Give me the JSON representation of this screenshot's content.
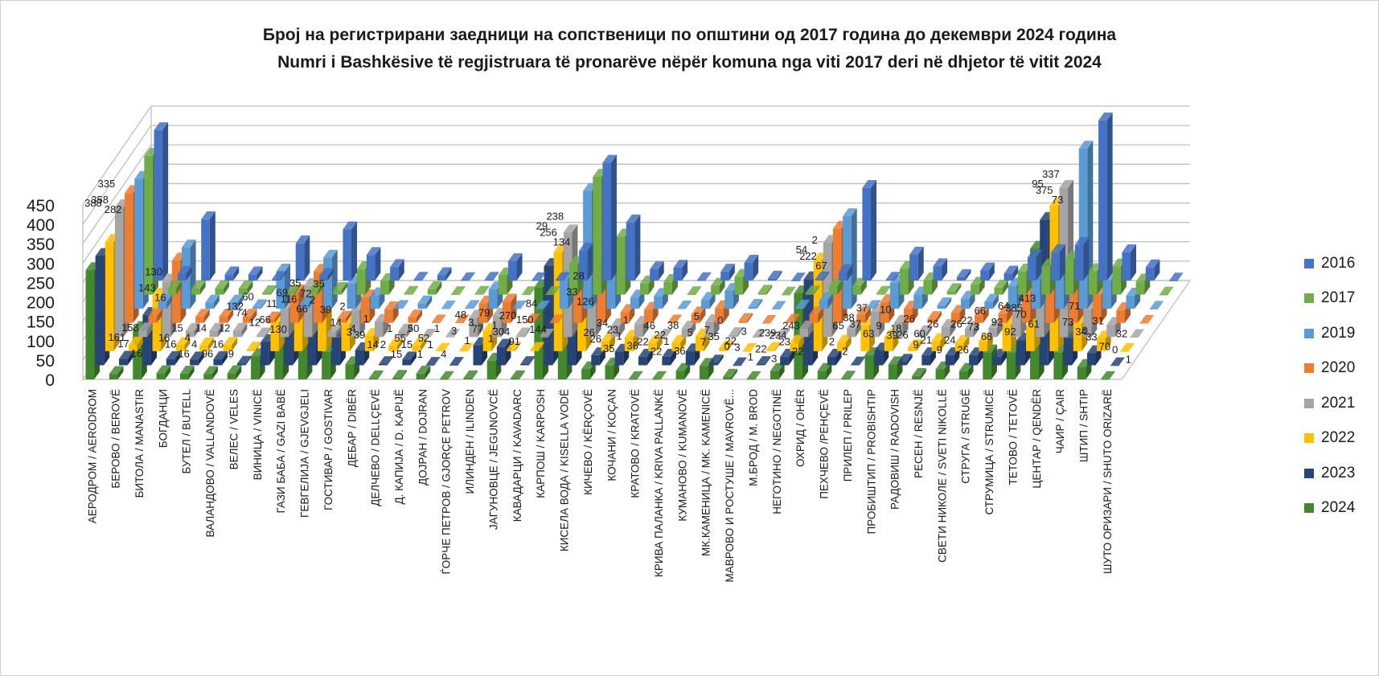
{
  "title_line1": "Број на регистрирани заедници на сопственици по општини од  2017 година до декември 2024 година",
  "title_line2": "Numri i Bashkësive të regjistruara të pronarëve nëpër komuna nga viti 2017 deri në dhjetor të vitit 2024",
  "chart_data": {
    "type": "bar",
    "style": "3d-clustered",
    "ylim": [
      0,
      450
    ],
    "yticks": [
      0,
      50,
      100,
      150,
      200,
      250,
      300,
      350,
      400,
      450
    ],
    "grid": true,
    "legend_position": "right",
    "categories": [
      "АЕРОДРОМ / AERODROM",
      "БЕРОВО / BEROVË",
      "БИТОЛА / MANASTIR",
      "БОГДАНЦИ",
      "БУТЕЛ / BUTELL",
      "ВАЛАНДОВО / VALLANDOVË",
      "ВЕЛЕС / VELES",
      "ВИНИЦА / VINICË",
      "ГАЗИ БАБА / GAZI BABË",
      "ГЕВГЕЛИЈА / GJEVGJELI",
      "ГОСТИВАР / GOSTIVAR",
      "ДЕБАР / DIBËR",
      "ДЕЛЧЕВО / DELLÇEVË",
      "Д. КАПИЈА / D. KAPIJË",
      "ДОЈРАН / DOJRAN",
      "ЃОРЧЕ ПЕТРОВ / GJORÇE PETROV",
      "ИЛИНДЕН / ILINDEN",
      "ЈАГУНОВЦЕ / JEGUNOVCË",
      "КАВАДАРЦИ / KAVADARC",
      "КАРПОШ / KARPOSH",
      "КИСЕЛА ВОДА / KISELLA VODË",
      "КИЧЕВО / KËRÇOVË",
      "КОЧАНИ / KOÇAN",
      "КРАТОВО / KRATOVË",
      "КРИВА ПАЛАНКА / KRIVA PALLANKË",
      "КУМАНОВО / KUMANOVË",
      "МК.КАМЕНИЦА / MK. KAMENICË",
      "МАВРОВО И РОСТУШЕ / MAVROVË...",
      "М.БРОД / M. BROD",
      "НЕГОТИНО / NEGOTINË",
      "ОХРИД / OHËR",
      "ПЕХЧЕВО /PEHÇEVË",
      "ПРИЛЕП / PRILEP",
      "ПРОБИШТИП / PROBISHTIP",
      "РАДОВИШ / RADOVISH",
      "РЕСЕН / RESNJË",
      "СВЕТИ НИКОЛЕ / SVETI NIKOLLË",
      "СТРУГА / STRUGË",
      "СТРУМИЦА / STRUMICË",
      "ТЕТОВО / TETOVË",
      "ЦЕНТАР / QENDËR",
      "ЧАИР / ÇAIR",
      "ШТИП / SHTIP",
      "ШУТО ОРИЗАРИ / SHUTO ORIZARË"
    ],
    "series": [
      {
        "name": "2016",
        "color": "#4472C4",
        "values": [
          388,
          17,
          158,
          16,
          16,
          4,
          96,
          12,
          132,
          66,
          35,
          2,
          14,
          1,
          2,
          50,
          1,
          1,
          77,
          304,
          150,
          29,
          33,
          1,
          23,
          46,
          5,
          0,
          3,
          22,
          239,
          2,
          67,
          37,
          9,
          26,
          18,
          60,
          73,
          92,
          413,
          73,
          34,
          0
        ]
      },
      {
        "name": "2017",
        "color": "#70AD47",
        "values": [
          358,
          17,
          16,
          16,
          16,
          4,
          4,
          12,
          12,
          66,
          35,
          2,
          14,
          1,
          2,
          50,
          1,
          1,
          79,
          304,
          150,
          29,
          33,
          1,
          23,
          46,
          5,
          0,
          3,
          22,
          23,
          2,
          67,
          37,
          9,
          26,
          18,
          60,
          73,
          92,
          61,
          73,
          34,
          0
        ]
      },
      {
        "name": "2019",
        "color": "#5B9BD5",
        "values": [
          335,
          17,
          158,
          16,
          16,
          4,
          96,
          12,
          132,
          66,
          35,
          2,
          14,
          1,
          2,
          50,
          1,
          1,
          77,
          304,
          150,
          29,
          33,
          1,
          23,
          46,
          5,
          0,
          3,
          22,
          239,
          2,
          67,
          37,
          9,
          26,
          18,
          60,
          73,
          92,
          413,
          73,
          34,
          0
        ]
      },
      {
        "name": "2020",
        "color": "#ED7D31",
        "values": [
          335,
          17,
          161,
          16,
          16,
          16,
          9,
          79,
          132,
          11,
          66,
          35,
          14,
          1,
          1,
          50,
          55,
          4,
          1,
          91,
          144,
          28,
          34,
          1,
          22,
          38,
          5,
          0,
          3,
          22,
          243,
          22,
          54,
          37,
          10,
          26,
          21,
          24,
          73,
          92,
          95,
          73,
          33,
          0
        ]
      },
      {
        "name": "2021",
        "color": "#A5A5A5",
        "values": [
          335,
          17,
          143,
          16,
          16,
          16,
          4,
          74,
          132,
          11,
          69,
          39,
          14,
          1,
          1,
          50,
          55,
          4,
          1,
          270,
          144,
          28,
          34,
          1,
          22,
          38,
          5,
          0,
          3,
          22,
          243,
          22,
          65,
          37,
          10,
          26,
          21,
          24,
          66,
          92,
          385,
          71,
          31,
          0
        ]
      },
      {
        "name": "2022",
        "color": "#FFC000",
        "values": [
          282,
          17,
          143,
          16,
          15,
          16,
          4,
          74,
          132,
          130,
          69,
          39,
          14,
          15,
          1,
          1,
          52,
          4,
          3,
          256,
          134,
          26,
          35,
          22,
          22,
          38,
          7,
          0,
          3,
          22,
          234,
          22,
          65,
          37,
          10,
          26,
          21,
          26,
          68,
          64,
          375,
          71,
          33,
          0
        ]
      },
      {
        "name": "2023",
        "color": "#264478",
        "values": [
          282,
          17,
          130,
          16,
          15,
          16,
          4,
          60,
          132,
          130,
          72,
          39,
          3,
          15,
          1,
          1,
          52,
          48,
          3,
          256,
          134,
          26,
          35,
          22,
          22,
          36,
          7,
          0,
          3,
          22,
          222,
          22,
          2,
          38,
          9,
          26,
          26,
          26,
          22,
          64,
          375,
          71,
          31,
          0
        ]
      },
      {
        "name": "2024",
        "color": "#43882F",
        "values": [
          282,
          14,
          130,
          16,
          15,
          14,
          16,
          60,
          132,
          116,
          72,
          39,
          3,
          4,
          15,
          1,
          3,
          48,
          3,
          238,
          126,
          26,
          36,
          1,
          1,
          22,
          35,
          7,
          1,
          22,
          222,
          22,
          2,
          63,
          39,
          9,
          26,
          22,
          70,
          70,
          337,
          70,
          32,
          1
        ]
      }
    ],
    "data_labels": [
      {
        "text": "388"
      },
      {
        "text": "358"
      },
      {
        "text": "335"
      },
      {
        "text": "282"
      },
      {
        "text": "17"
      },
      {
        "text": "158"
      },
      {
        "text": "16"
      },
      {
        "text": "161"
      },
      {
        "text": "143"
      },
      {
        "text": "130"
      },
      {
        "text": "16"
      },
      {
        "text": "16"
      },
      {
        "text": "15"
      },
      {
        "text": "16"
      },
      {
        "text": "16"
      },
      {
        "text": "4"
      },
      {
        "text": "14"
      },
      {
        "text": "96"
      },
      {
        "text": "4"
      },
      {
        "text": "16"
      },
      {
        "text": "12"
      },
      {
        "text": "9"
      },
      {
        "text": "74"
      },
      {
        "text": "60"
      },
      {
        "text": "12"
      },
      {
        "text": "132"
      },
      {
        "text": "66"
      },
      {
        "text": "11"
      },
      {
        "text": "130"
      },
      {
        "text": "116"
      },
      {
        "text": "35"
      },
      {
        "text": "66"
      },
      {
        "text": "69"
      },
      {
        "text": "2"
      },
      {
        "text": "35"
      },
      {
        "text": "39"
      },
      {
        "text": "72"
      },
      {
        "text": "14"
      },
      {
        "text": "2"
      },
      {
        "text": "3"
      },
      {
        "text": "39"
      },
      {
        "text": "1"
      },
      {
        "text": "14"
      },
      {
        "text": "4"
      },
      {
        "text": "2"
      },
      {
        "text": "1"
      },
      {
        "text": "15"
      },
      {
        "text": "15"
      },
      {
        "text": "50"
      },
      {
        "text": "1"
      },
      {
        "text": "55"
      },
      {
        "text": "1"
      },
      {
        "text": "1"
      },
      {
        "text": "4"
      },
      {
        "text": "52"
      },
      {
        "text": "3"
      },
      {
        "text": "48"
      },
      {
        "text": "1"
      },
      {
        "text": "77"
      },
      {
        "text": "79"
      },
      {
        "text": "1"
      },
      {
        "text": "3"
      },
      {
        "text": "304"
      },
      {
        "text": "270"
      },
      {
        "text": "91"
      },
      {
        "text": "1"
      },
      {
        "text": "150"
      },
      {
        "text": "84"
      },
      {
        "text": "144"
      },
      {
        "text": "256"
      },
      {
        "text": "238"
      },
      {
        "text": "134"
      },
      {
        "text": "29"
      },
      {
        "text": "33"
      },
      {
        "text": "28"
      },
      {
        "text": "126"
      },
      {
        "text": "26"
      },
      {
        "text": "34"
      },
      {
        "text": "35"
      },
      {
        "text": "26"
      },
      {
        "text": "1"
      },
      {
        "text": "1"
      },
      {
        "text": "36"
      },
      {
        "text": "23"
      },
      {
        "text": "22"
      },
      {
        "text": "46"
      },
      {
        "text": "22"
      },
      {
        "text": "1"
      },
      {
        "text": "38"
      },
      {
        "text": "36"
      },
      {
        "text": "22"
      },
      {
        "text": "5"
      },
      {
        "text": "5"
      },
      {
        "text": "7"
      },
      {
        "text": "35"
      },
      {
        "text": "0"
      },
      {
        "text": "0"
      },
      {
        "text": "7"
      },
      {
        "text": "3"
      },
      {
        "text": "3"
      },
      {
        "text": "1"
      },
      {
        "text": "22"
      },
      {
        "text": "22"
      },
      {
        "text": "239"
      },
      {
        "text": "3"
      },
      {
        "text": "23"
      },
      {
        "text": "243"
      },
      {
        "text": "22"
      },
      {
        "text": "234"
      },
      {
        "text": "222"
      },
      {
        "text": "2"
      },
      {
        "text": "67"
      },
      {
        "text": "54"
      },
      {
        "text": "2"
      },
      {
        "text": "65"
      },
      {
        "text": "2"
      },
      {
        "text": "37"
      },
      {
        "text": "37"
      },
      {
        "text": "63"
      },
      {
        "text": "38"
      },
      {
        "text": "9"
      },
      {
        "text": "10"
      },
      {
        "text": "39"
      },
      {
        "text": "26"
      },
      {
        "text": "26"
      },
      {
        "text": "9"
      },
      {
        "text": "18"
      },
      {
        "text": "21"
      },
      {
        "text": "26"
      },
      {
        "text": "9"
      },
      {
        "text": "60"
      },
      {
        "text": "24"
      },
      {
        "text": "26"
      },
      {
        "text": "26"
      },
      {
        "text": "73"
      },
      {
        "text": "66"
      },
      {
        "text": "68"
      },
      {
        "text": "22"
      },
      {
        "text": "92"
      },
      {
        "text": "64"
      },
      {
        "text": "92"
      },
      {
        "text": "70"
      },
      {
        "text": "413"
      },
      {
        "text": "61"
      },
      {
        "text": "385"
      },
      {
        "text": "375"
      },
      {
        "text": "337"
      },
      {
        "text": "73"
      },
      {
        "text": "95"
      },
      {
        "text": "73"
      },
      {
        "text": "71"
      },
      {
        "text": "34"
      },
      {
        "text": "33"
      },
      {
        "text": "31"
      },
      {
        "text": "70"
      },
      {
        "text": "0"
      },
      {
        "text": "0"
      },
      {
        "text": "32"
      },
      {
        "text": "1"
      }
    ]
  }
}
